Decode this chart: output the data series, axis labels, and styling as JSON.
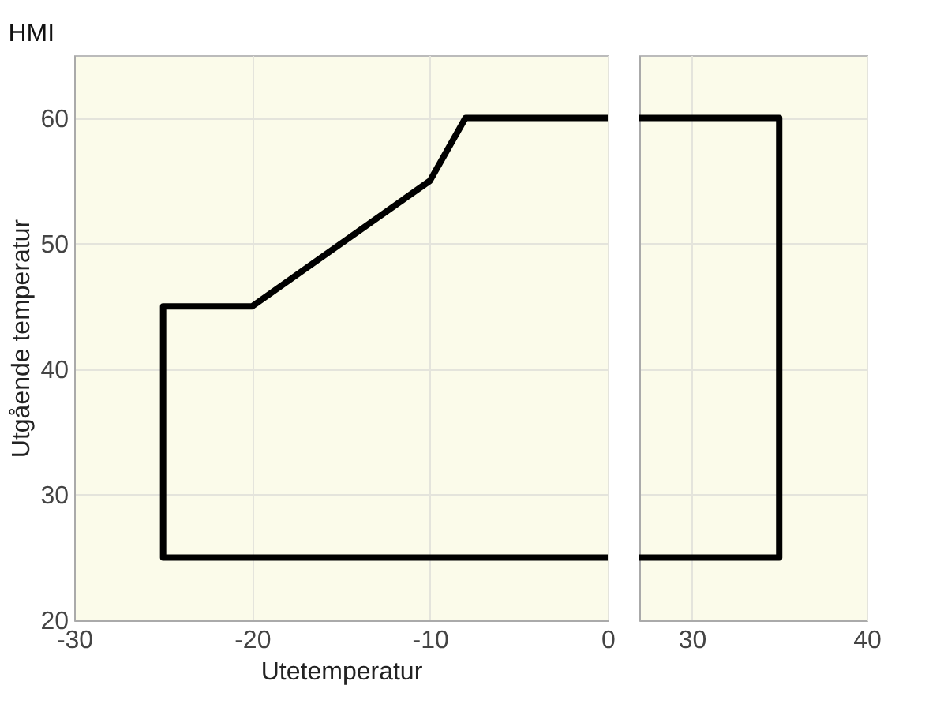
{
  "chart_data": [
    {
      "type": "line",
      "title": "HMI",
      "xlabel": "Utetemperatur",
      "ylabel": "Utgående temperatur",
      "x": [
        0,
        -25,
        -25,
        -20,
        -10,
        -8,
        0
      ],
      "series": [
        {
          "color": "#000000",
          "values": [
            25,
            25,
            45,
            45,
            55,
            60,
            60
          ]
        }
      ],
      "xlim": [
        -30,
        0
      ],
      "xticks": [
        -30,
        -20,
        -10,
        0
      ],
      "ylim": [
        20,
        65
      ],
      "yticks": [
        20,
        30,
        40,
        50,
        60
      ],
      "grid": true,
      "line_style": "solid"
    },
    {
      "type": "line",
      "x": [
        27,
        35,
        35,
        27
      ],
      "series": [
        {
          "color": "#000000",
          "values": [
            60,
            60,
            25,
            25
          ]
        }
      ],
      "xlim": [
        27,
        40
      ],
      "xticks": [
        30,
        40
      ],
      "ylim": [
        20,
        65
      ],
      "yticks": [
        20,
        30,
        40,
        50,
        60
      ],
      "grid": true,
      "line_style": "solid",
      "tick_labels": "x"
    }
  ]
}
